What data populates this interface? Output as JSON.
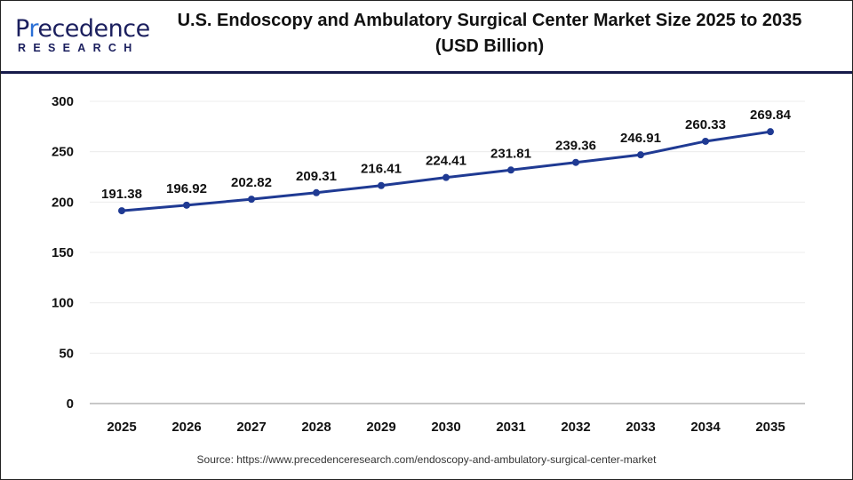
{
  "header": {
    "logo_text": "Precedence RESEARCH",
    "title": "U.S. Endoscopy and Ambulatory Surgical Center Market Size 2025 to 2035 (USD Billion)"
  },
  "chart_data": {
    "type": "line",
    "title": "U.S. Endoscopy and Ambulatory Surgical Center Market Size 2025 to 2035 (USD Billion)",
    "categories": [
      "2025",
      "2026",
      "2027",
      "2028",
      "2029",
      "2030",
      "2031",
      "2032",
      "2033",
      "2034",
      "2035"
    ],
    "series": [
      {
        "values": [
          191.38,
          196.92,
          202.82,
          209.31,
          216.41,
          224.41,
          231.81,
          239.36,
          246.91,
          260.33,
          269.84
        ],
        "color": "#1f3a93"
      }
    ],
    "data_labels": [
      "191.38",
      "196.92",
      "202.82",
      "209.31",
      "216.41",
      "224.41",
      "231.81",
      "239.36",
      "246.91",
      "260.33",
      "269.84"
    ],
    "yticks": [
      "0",
      "50",
      "100",
      "150",
      "200",
      "250",
      "300"
    ],
    "ylim": [
      0,
      300
    ],
    "grid": true,
    "xlabel": "",
    "ylabel": ""
  },
  "footer": {
    "source": "Source: https://www.precedenceresearch.com/endoscopy-and-ambulatory-surgical-center-market"
  }
}
